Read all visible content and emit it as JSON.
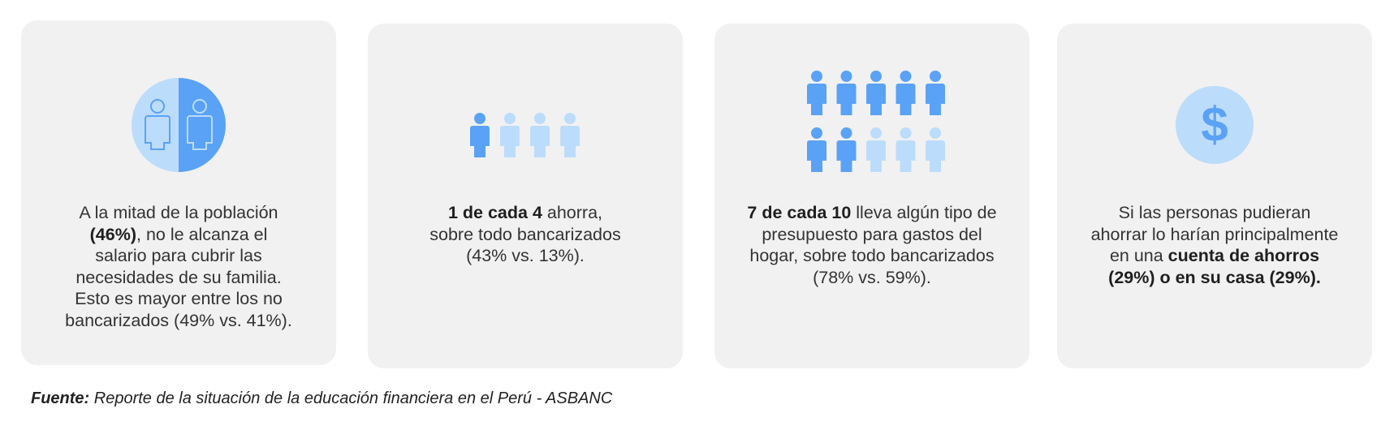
{
  "colors": {
    "card_bg": "#f1f1f1",
    "icon_dark": "#5aa2f6",
    "icon_light": "#bcdcfc",
    "circle_light": "#bcdcfc",
    "circle_dark": "#5aa2f6"
  },
  "cards": [
    {
      "icon": "half-population-icon",
      "text": [
        {
          "parts": [
            {
              "t": "A la mitad de la población",
              "b": false
            }
          ]
        },
        {
          "parts": [
            {
              "t": "(46%)",
              "b": true
            },
            {
              "t": ", no le alcanza el",
              "b": false
            }
          ]
        },
        {
          "parts": [
            {
              "t": "salario para cubrir las",
              "b": false
            }
          ]
        },
        {
          "parts": [
            {
              "t": "necesidades de su familia.",
              "b": false
            }
          ]
        },
        {
          "parts": [
            {
              "t": "Esto es mayor entre los no",
              "b": false
            }
          ]
        },
        {
          "parts": [
            {
              "t": "bancarizados (49% vs. 41%).",
              "b": false
            }
          ]
        }
      ]
    },
    {
      "icon": "people-1-of-4-icon",
      "text": [
        {
          "parts": [
            {
              "t": "1 de cada 4",
              "b": true
            },
            {
              "t": " ahorra,",
              "b": false
            }
          ]
        },
        {
          "parts": [
            {
              "t": "sobre todo bancarizados",
              "b": false
            }
          ]
        },
        {
          "parts": [
            {
              "t": "(43% vs. 13%).",
              "b": false
            }
          ]
        }
      ]
    },
    {
      "icon": "people-7-of-10-icon",
      "text": [
        {
          "parts": [
            {
              "t": "7 de cada 10",
              "b": true
            },
            {
              "t": " lleva algún tipo de",
              "b": false
            }
          ]
        },
        {
          "parts": [
            {
              "t": "presupuesto para gastos del",
              "b": false
            }
          ]
        },
        {
          "parts": [
            {
              "t": "hogar, sobre todo bancarizados",
              "b": false
            }
          ]
        },
        {
          "parts": [
            {
              "t": "(78% vs. 59%).",
              "b": false
            }
          ]
        }
      ]
    },
    {
      "icon": "dollar-coin-icon",
      "text": [
        {
          "parts": [
            {
              "t": "Si las personas pudieran",
              "b": false
            }
          ]
        },
        {
          "parts": [
            {
              "t": "ahorrar lo harían principalmente",
              "b": false
            }
          ]
        },
        {
          "parts": [
            {
              "t": "en una ",
              "b": false
            },
            {
              "t": "cuenta de ahorros",
              "b": true
            }
          ]
        },
        {
          "parts": [
            {
              "t": "(29%) o en su casa (29%).",
              "b": true
            }
          ]
        }
      ]
    }
  ],
  "stats": {
    "people_1_of_4": {
      "highlighted": 1,
      "total": 4
    },
    "people_7_of_10": {
      "highlighted": 7,
      "total": 10
    }
  },
  "footer": {
    "label": "Fuente:",
    "text": " Reporte de la situación de la educación financiera en el Perú - ASBANC"
  }
}
